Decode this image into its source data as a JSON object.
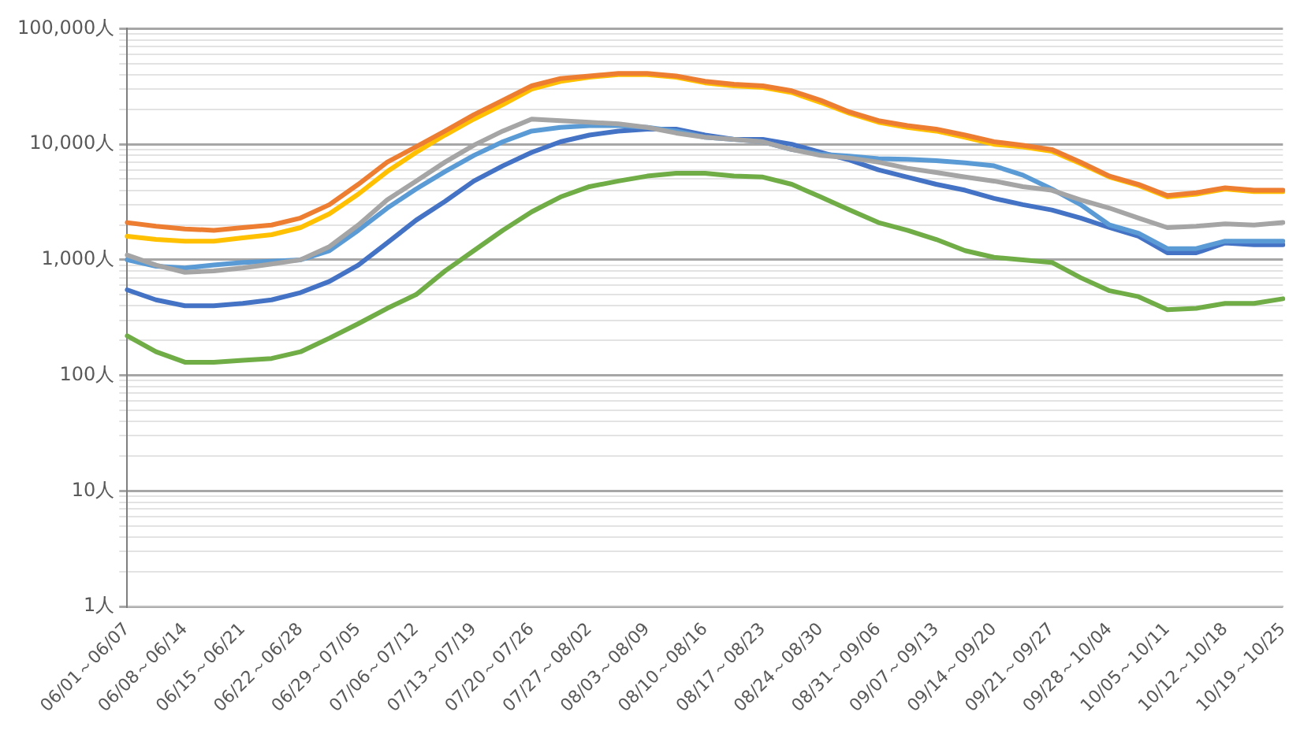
{
  "chart_data": {
    "type": "line",
    "log": "y",
    "grid": "y",
    "legend": false,
    "marker": "none",
    "line_style": "solid",
    "categories": [
      "06/01～06/07",
      null,
      "06/08～06/14",
      null,
      "06/15～06/21",
      null,
      "06/22～06/28",
      null,
      "06/29～07/05",
      null,
      "07/06～07/12",
      null,
      "07/13～07/19",
      null,
      "07/20～07/26",
      null,
      "07/27～08/02",
      null,
      "08/03～08/09",
      null,
      "08/10～08/16",
      null,
      "08/17～08/23",
      null,
      "08/24～08/30",
      null,
      "08/31～09/06",
      null,
      "09/07～09/13",
      null,
      "09/14～09/20",
      null,
      "09/21～09/27",
      null,
      "09/28～10/04",
      null,
      "10/05～10/11",
      null,
      "10/12～10/18",
      null,
      "10/19～10/25"
    ],
    "ylim": [
      1,
      100000
    ],
    "yticks": [
      {
        "value": 1,
        "label": "1人"
      },
      {
        "value": 2,
        "label": null
      },
      {
        "value": 3,
        "label": null
      },
      {
        "value": 4,
        "label": null
      },
      {
        "value": 5,
        "label": null
      },
      {
        "value": 6,
        "label": null
      },
      {
        "value": 7,
        "label": null
      },
      {
        "value": 8,
        "label": null
      },
      {
        "value": 9,
        "label": null
      },
      {
        "value": 10,
        "label": "10人"
      },
      {
        "value": 20,
        "label": null
      },
      {
        "value": 30,
        "label": null
      },
      {
        "value": 40,
        "label": null
      },
      {
        "value": 50,
        "label": null
      },
      {
        "value": 60,
        "label": null
      },
      {
        "value": 70,
        "label": null
      },
      {
        "value": 80,
        "label": null
      },
      {
        "value": 90,
        "label": null
      },
      {
        "value": 100,
        "label": "100人"
      },
      {
        "value": 200,
        "label": null
      },
      {
        "value": 300,
        "label": null
      },
      {
        "value": 400,
        "label": null
      },
      {
        "value": 500,
        "label": null
      },
      {
        "value": 600,
        "label": null
      },
      {
        "value": 700,
        "label": null
      },
      {
        "value": 800,
        "label": null
      },
      {
        "value": 900,
        "label": null
      },
      {
        "value": 1000,
        "label": "1,000人"
      },
      {
        "value": 2000,
        "label": null
      },
      {
        "value": 3000,
        "label": null
      },
      {
        "value": 4000,
        "label": null
      },
      {
        "value": 5000,
        "label": null
      },
      {
        "value": 6000,
        "label": null
      },
      {
        "value": 7000,
        "label": null
      },
      {
        "value": 8000,
        "label": null
      },
      {
        "value": 9000,
        "label": null
      },
      {
        "value": 10000,
        "label": "10,000人"
      },
      {
        "value": 20000,
        "label": null
      },
      {
        "value": 30000,
        "label": null
      },
      {
        "value": 40000,
        "label": null
      },
      {
        "value": 50000,
        "label": null
      },
      {
        "value": 60000,
        "label": null
      },
      {
        "value": 70000,
        "label": null
      },
      {
        "value": 80000,
        "label": null
      },
      {
        "value": 90000,
        "label": null
      },
      {
        "value": 100000,
        "label": "100,000人"
      }
    ],
    "series": [
      {
        "color": "#ed7d31",
        "values": [
          2100,
          1950,
          1850,
          1800,
          1900,
          2000,
          2300,
          3000,
          4500,
          7000,
          9500,
          13000,
          18000,
          24000,
          32000,
          37000,
          39000,
          41000,
          41000,
          39000,
          35000,
          33000,
          32000,
          29000,
          24000,
          19000,
          16000,
          14500,
          13500,
          12000,
          10500,
          9800,
          9000,
          7000,
          5300,
          4500,
          3600,
          3800,
          4200,
          4000,
          4000
        ]
      },
      {
        "color": "#ffc000",
        "values": [
          1600,
          1500,
          1450,
          1450,
          1550,
          1650,
          1900,
          2500,
          3700,
          5800,
          8500,
          12000,
          16500,
          22000,
          30000,
          35000,
          38000,
          40000,
          40000,
          38000,
          34000,
          32000,
          31000,
          28000,
          23000,
          18500,
          15500,
          14000,
          13000,
          11500,
          10000,
          9500,
          8700,
          6800,
          5200,
          4400,
          3500,
          3700,
          4100,
          3900,
          3900
        ]
      },
      {
        "color": "#a5a5a5",
        "values": [
          1100,
          900,
          780,
          800,
          850,
          920,
          1000,
          1300,
          2000,
          3300,
          4800,
          7000,
          9800,
          13000,
          16500,
          16000,
          15500,
          15000,
          14000,
          12500,
          11500,
          11000,
          10500,
          9000,
          8000,
          7600,
          7000,
          6200,
          5700,
          5200,
          4800,
          4300,
          4000,
          3300,
          2800,
          2300,
          1900,
          1950,
          2050,
          2000,
          2100
        ]
      },
      {
        "color": "#5b9bd5",
        "values": [
          1000,
          880,
          850,
          900,
          950,
          970,
          1000,
          1200,
          1800,
          2800,
          4100,
          5800,
          8000,
          10500,
          13000,
          14000,
          14500,
          14500,
          14000,
          13000,
          11500,
          11000,
          10500,
          9000,
          8200,
          7900,
          7500,
          7400,
          7200,
          6900,
          6500,
          5400,
          4100,
          3000,
          2000,
          1700,
          1250,
          1250,
          1450,
          1450,
          1450
        ]
      },
      {
        "color": "#4472c4",
        "values": [
          550,
          450,
          400,
          400,
          420,
          450,
          520,
          650,
          900,
          1400,
          2200,
          3200,
          4800,
          6500,
          8500,
          10500,
          12000,
          13000,
          13500,
          13500,
          12000,
          11000,
          11000,
          10000,
          8500,
          7300,
          6000,
          5200,
          4500,
          4000,
          3400,
          3000,
          2700,
          2300,
          1900,
          1600,
          1150,
          1150,
          1400,
          1350,
          1350
        ]
      },
      {
        "color": "#70ad47",
        "values": [
          220,
          160,
          130,
          130,
          135,
          140,
          160,
          210,
          280,
          380,
          500,
          800,
          1200,
          1800,
          2600,
          3500,
          4300,
          4800,
          5300,
          5600,
          5600,
          5300,
          5200,
          4500,
          3500,
          2700,
          2100,
          1800,
          1500,
          1200,
          1050,
          1000,
          950,
          700,
          540,
          480,
          370,
          380,
          420,
          420,
          460
        ]
      }
    ]
  }
}
